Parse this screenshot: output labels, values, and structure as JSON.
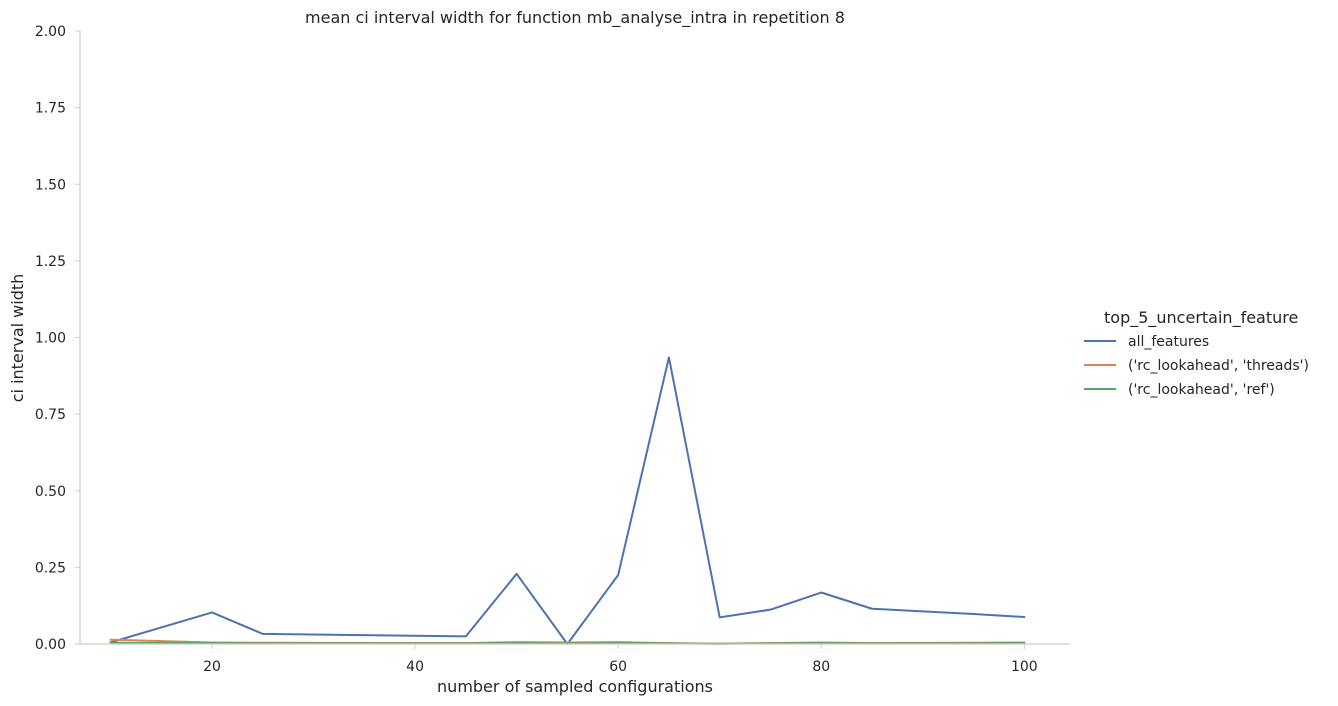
{
  "chart_data": {
    "type": "line",
    "title": "mean ci interval width for function mb_analyse_intra in repetition 8",
    "xlabel": "number of sampled configurations",
    "ylabel": "ci interval width",
    "xlim": [
      7,
      104.5
    ],
    "ylim": [
      0,
      2
    ],
    "x_ticks": [
      20,
      40,
      60,
      80,
      100
    ],
    "y_ticks": [
      0.0,
      0.25,
      0.5,
      0.75,
      1.0,
      1.25,
      1.5,
      1.75,
      2.0
    ],
    "y_tick_labels": [
      "0.00",
      "0.25",
      "0.50",
      "0.75",
      "1.00",
      "1.25",
      "1.50",
      "1.75",
      "2.00"
    ],
    "grid": false,
    "legend": {
      "title": "top_5_uncertain_feature",
      "placement": "right"
    },
    "series": [
      {
        "name": "all_features",
        "color": "#4c72b0",
        "x": [
          10,
          20,
          25,
          45,
          50,
          55,
          60,
          65,
          70,
          75,
          80,
          85,
          95,
          100
        ],
        "values": [
          0.005,
          0.103,
          0.033,
          0.025,
          0.229,
          0.0,
          0.225,
          0.935,
          0.087,
          0.112,
          0.168,
          0.115,
          0.098,
          0.088
        ]
      },
      {
        "name": "('rc_lookahead', 'threads')",
        "color": "#dd8452",
        "x": [
          10,
          20,
          25,
          45,
          50,
          55,
          60,
          65,
          70,
          75,
          80,
          85,
          95,
          100
        ],
        "values": [
          0.014,
          0.005,
          0.004,
          0.003,
          0.006,
          0.005,
          0.006,
          0.003,
          0.001,
          0.003,
          0.005,
          0.003,
          0.004,
          0.005
        ]
      },
      {
        "name": "('rc_lookahead', 'ref')",
        "color": "#55a868",
        "x": [
          10,
          20,
          25,
          45,
          50,
          55,
          60,
          65,
          70,
          75,
          80,
          85,
          95,
          100
        ],
        "values": [
          0.004,
          0.003,
          0.002,
          0.002,
          0.003,
          0.002,
          0.003,
          0.002,
          0.001,
          0.002,
          0.003,
          0.002,
          0.002,
          0.003
        ]
      }
    ]
  }
}
